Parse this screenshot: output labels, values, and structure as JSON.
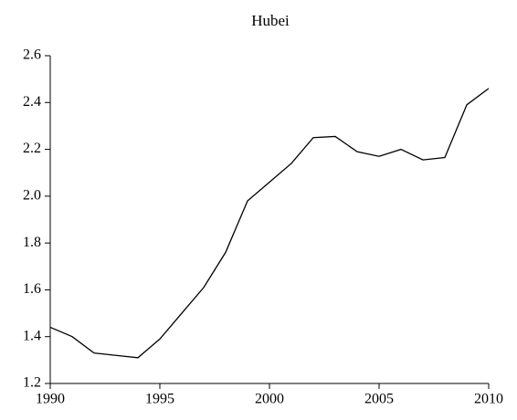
{
  "chart_data": {
    "type": "line",
    "title": "Hubei",
    "x": [
      1990,
      1991,
      1992,
      1993,
      1994,
      1995,
      1996,
      1997,
      1998,
      1999,
      2000,
      2001,
      2002,
      2003,
      2004,
      2005,
      2006,
      2007,
      2008,
      2009,
      2010
    ],
    "series": [
      {
        "name": "Hubei",
        "color": "#000000",
        "values": [
          1.44,
          1.4,
          1.33,
          1.32,
          1.31,
          1.39,
          1.5,
          1.61,
          1.76,
          1.98,
          2.06,
          2.14,
          2.25,
          2.255,
          2.19,
          2.17,
          2.2,
          2.155,
          2.165,
          2.39,
          2.46
        ]
      }
    ],
    "xlim": [
      1990,
      2010
    ],
    "xticks": [
      1990,
      1995,
      2000,
      2005,
      2010
    ],
    "ylim": [
      1.2,
      2.6
    ],
    "yticks": [
      1.2,
      1.4,
      1.6,
      1.8,
      {
        "value": 2,
        "label": "2.0"
      },
      2.2,
      2.4,
      2.6
    ],
    "grid": false
  }
}
